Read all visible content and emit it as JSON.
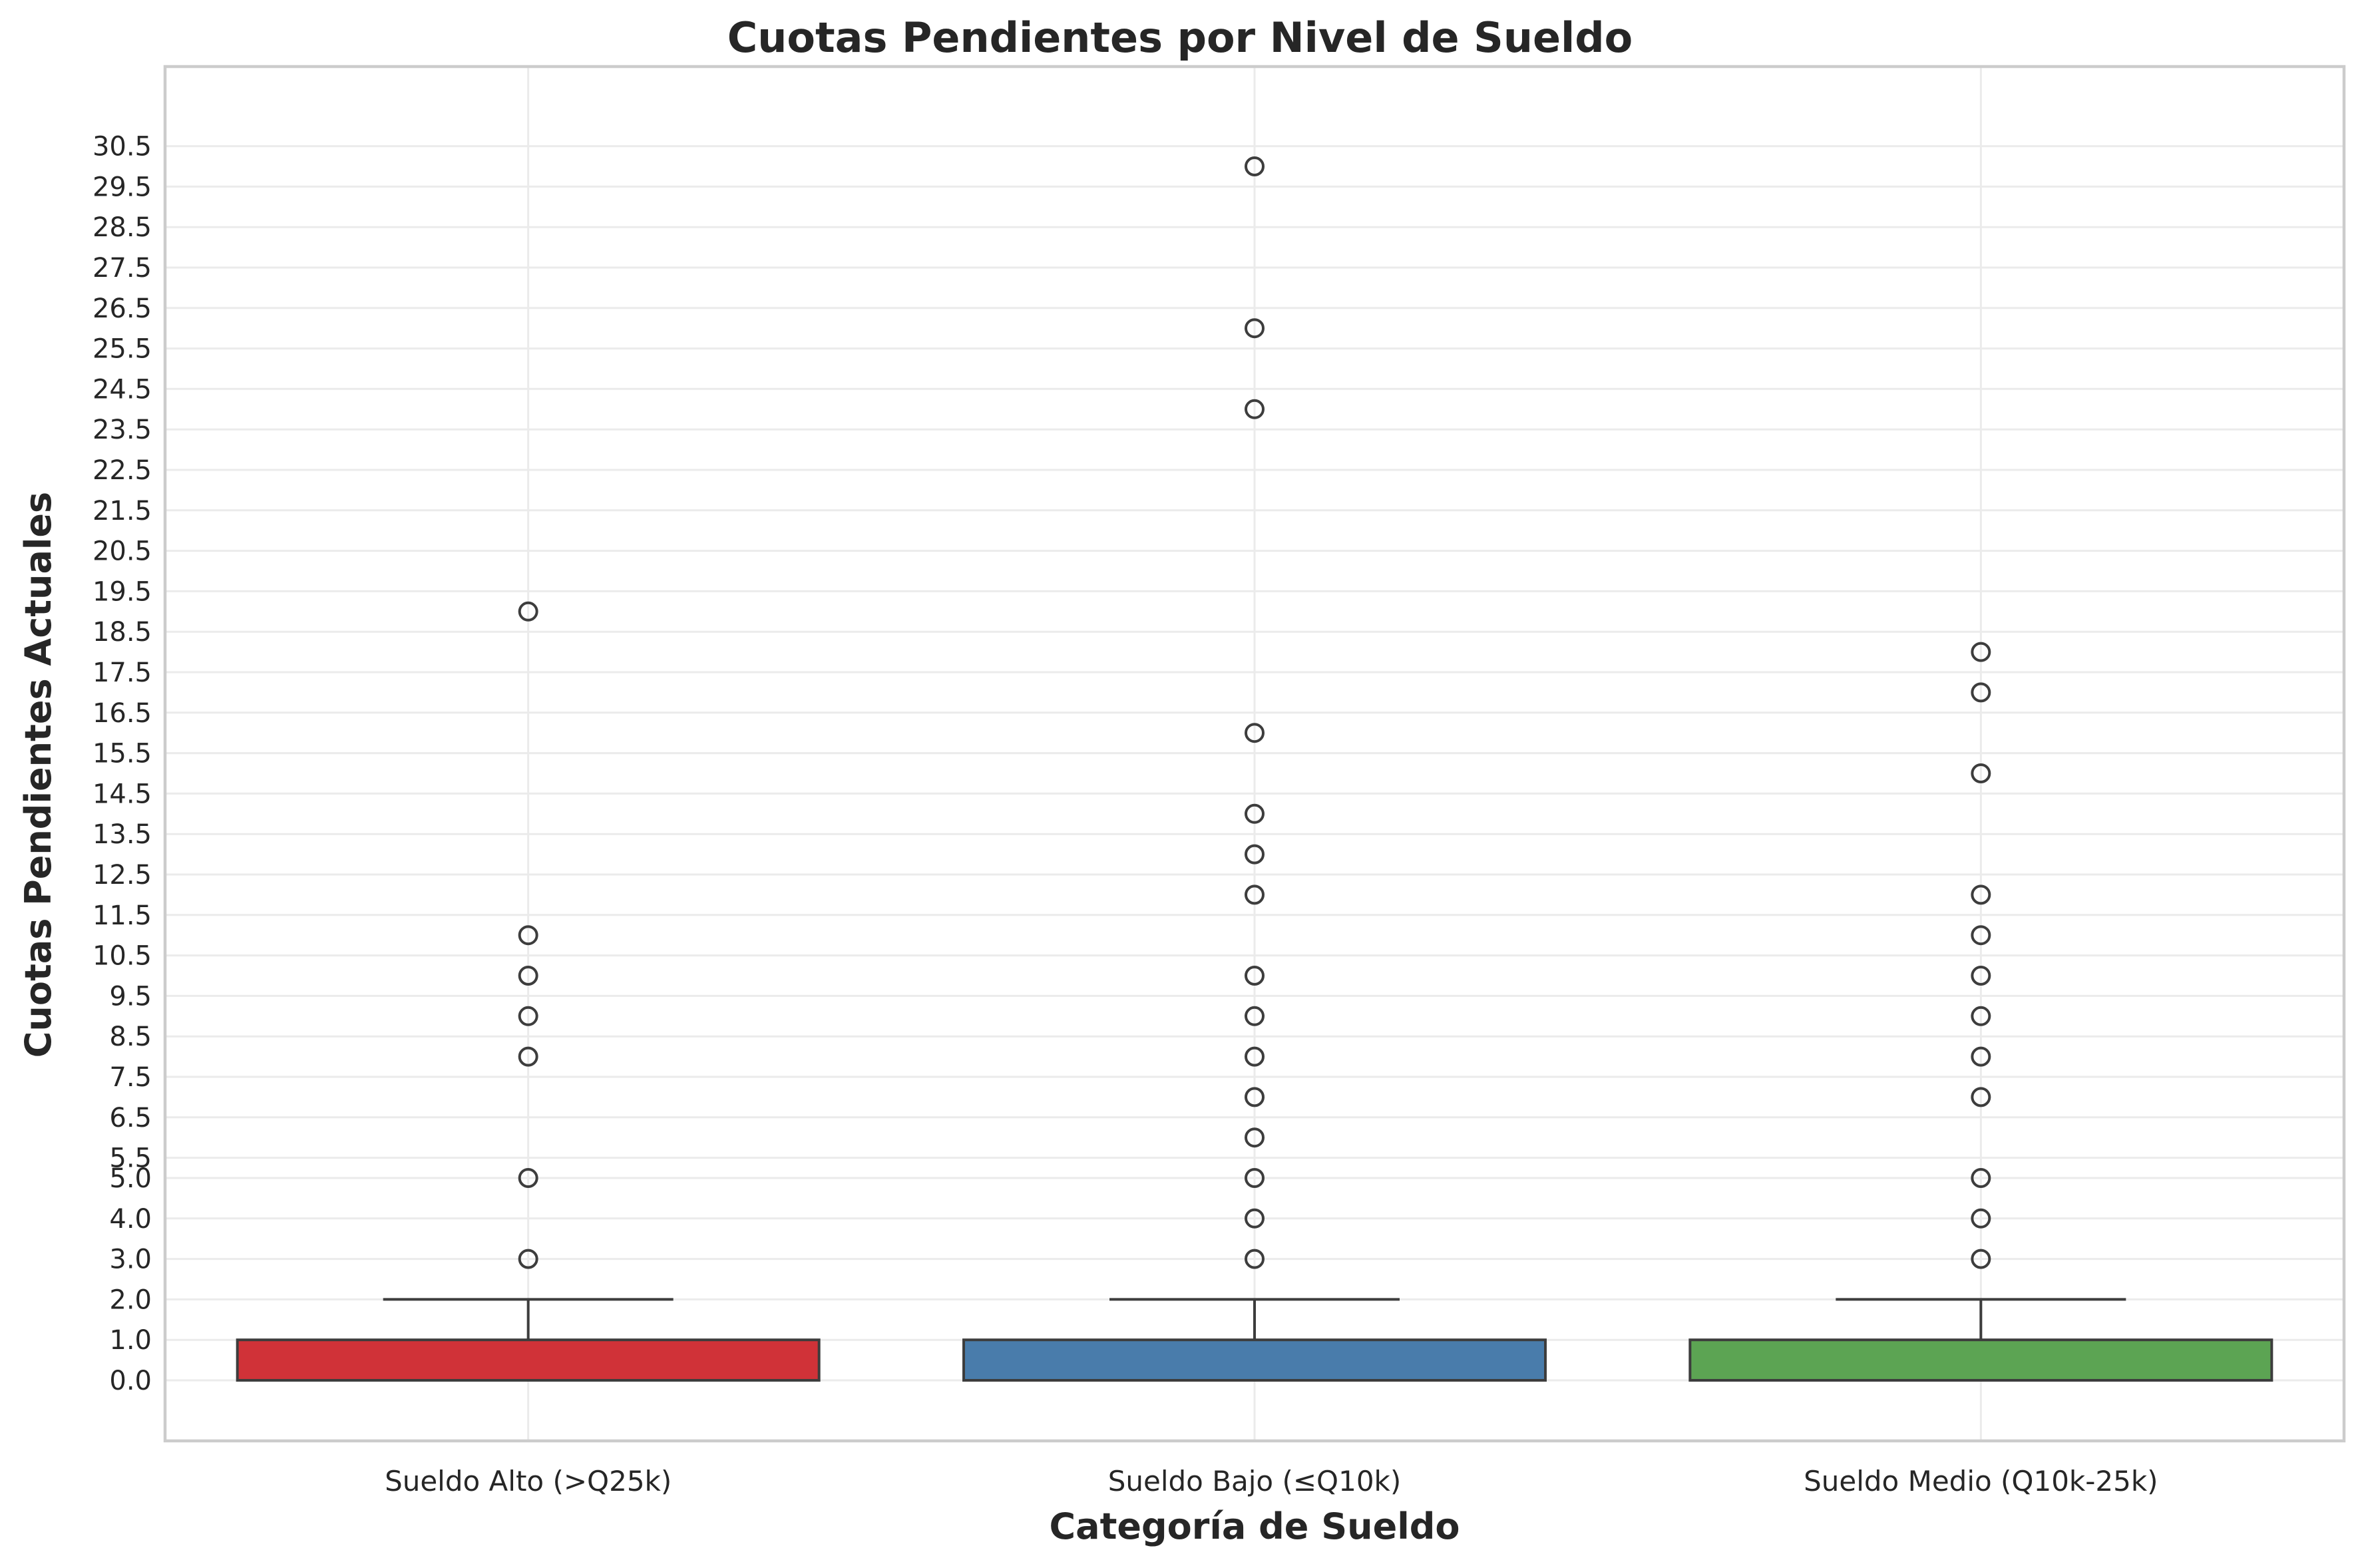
{
  "chart_data": {
    "type": "box",
    "title": "Cuotas Pendientes por Nivel de Sueldo",
    "xlabel": "Categoría de Sueldo",
    "ylabel": "Cuotas Pendientes Actuales",
    "ylim": [
      -1.5,
      31.5
    ],
    "yticks": [
      "0.0",
      "1.0",
      "2.0",
      "3.0",
      "4.0",
      "5.0",
      "5.5",
      "6.5",
      "7.5",
      "8.5",
      "9.5",
      "10.5",
      "11.5",
      "12.5",
      "13.5",
      "14.5",
      "15.5",
      "16.5",
      "17.5",
      "18.5",
      "19.5",
      "20.5",
      "21.5",
      "22.5",
      "23.5",
      "24.5",
      "25.5",
      "26.5",
      "27.5",
      "28.5",
      "29.5",
      "30.5"
    ],
    "grid": true,
    "categories": [
      "Sueldo Alto (>Q25k)",
      "Sueldo Bajo (≤Q10k)",
      "Sueldo Medio (Q10k-25k)"
    ],
    "colors": [
      "#d03238",
      "#497cab",
      "#5ca453"
    ],
    "boxes": [
      {
        "category": "Sueldo Alto (>Q25k)",
        "q1": 0,
        "median": 0,
        "q3": 1,
        "whisker_low": 0,
        "whisker_high": 2,
        "outliers": [
          3,
          5,
          8,
          9,
          10,
          11,
          19
        ]
      },
      {
        "category": "Sueldo Bajo (≤Q10k)",
        "q1": 0,
        "median": 0,
        "q3": 1,
        "whisker_low": 0,
        "whisker_high": 2,
        "outliers": [
          3,
          4,
          5,
          6,
          7,
          8,
          9,
          10,
          12,
          13,
          14,
          16,
          24,
          26,
          30
        ]
      },
      {
        "category": "Sueldo Medio (Q10k-25k)",
        "q1": 0,
        "median": 0,
        "q3": 1,
        "whisker_low": 0,
        "whisker_high": 2,
        "outliers": [
          3,
          4,
          5,
          7,
          8,
          9,
          10,
          11,
          12,
          15,
          17,
          18
        ]
      }
    ]
  }
}
